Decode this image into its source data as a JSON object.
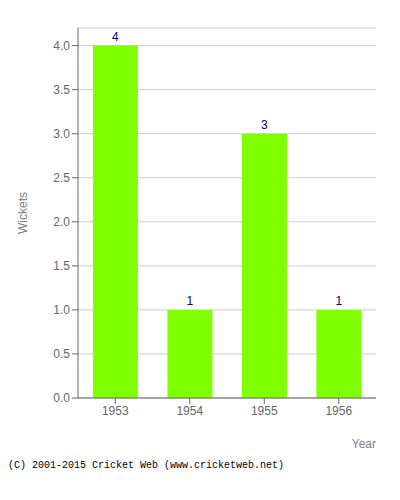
{
  "chart_data": {
    "type": "bar",
    "categories": [
      "1953",
      "1954",
      "1955",
      "1956"
    ],
    "values": [
      4,
      1,
      3,
      1
    ],
    "color": "#7fff00",
    "xlabel": "Year",
    "ylabel": "Wickets",
    "ylim": [
      0,
      4.2
    ],
    "yticks": [
      {
        "value": 0,
        "label": "0.0"
      },
      0.5,
      {
        "value": 1,
        "label": "1.0"
      },
      1.5,
      {
        "value": 2,
        "label": "2.0"
      },
      2.5,
      {
        "value": 3,
        "label": "3.0"
      },
      3.5,
      {
        "value": 4,
        "label": "4.0"
      }
    ],
    "grid": true,
    "data_labels": true,
    "annotations": [
      "(C) 2001-2015 Cricket Web (www.cricketweb.net)"
    ]
  }
}
